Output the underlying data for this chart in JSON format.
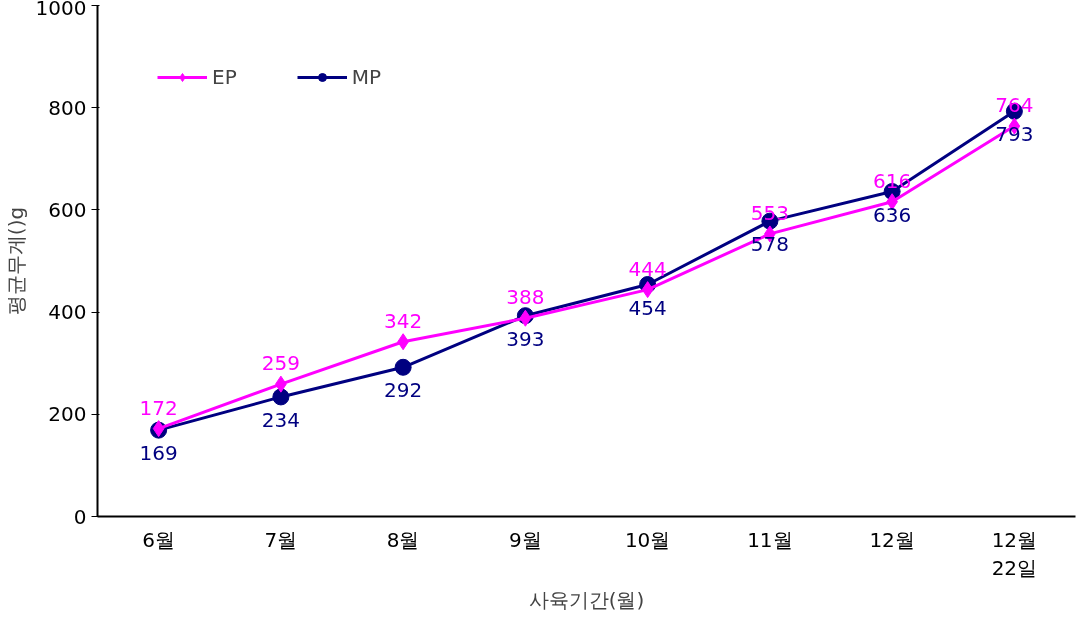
{
  "chart_data": {
    "type": "line",
    "xlabel": "사육기간(월)",
    "ylabel": "평균무게()g",
    "categories": [
      "6월",
      "7월",
      "8월",
      "9월",
      "10월",
      "11월",
      "12월",
      "12월\n22일"
    ],
    "series": [
      {
        "name": "EP",
        "color": "#ff00ff",
        "marker": "diamond",
        "values": [
          172,
          259,
          342,
          388,
          444,
          553,
          616,
          764
        ]
      },
      {
        "name": "MP",
        "color": "#000080",
        "marker": "circle",
        "values": [
          169,
          234,
          292,
          393,
          454,
          578,
          636,
          793
        ]
      }
    ],
    "ylim": [
      0,
      1000
    ],
    "yticks": [
      0,
      200,
      400,
      600,
      800,
      1000
    ],
    "grid": false,
    "legend": "top left",
    "data_labels": true
  }
}
